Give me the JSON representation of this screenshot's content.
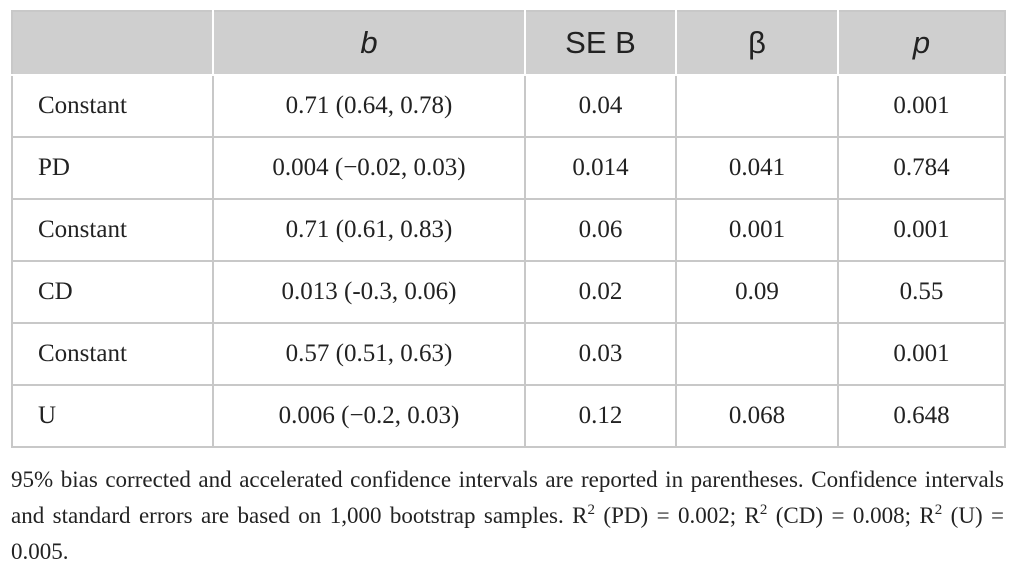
{
  "table": {
    "headers": [
      "",
      "b",
      "SE B",
      "β",
      "p"
    ],
    "rows": [
      [
        "Constant",
        "0.71 (0.64, 0.78)",
        "0.04",
        "",
        "0.001"
      ],
      [
        "PD",
        "0.004 (−0.02, 0.03)",
        "0.014",
        "0.041",
        "0.784"
      ],
      [
        "Constant",
        "0.71 (0.61, 0.83)",
        "0.06",
        "0.001",
        "0.001"
      ],
      [
        "CD",
        "0.013 (-0.3, 0.06)",
        "0.02",
        "0.09",
        "0.55"
      ],
      [
        "Constant",
        "0.57 (0.51, 0.63)",
        "0.03",
        "",
        "0.001"
      ],
      [
        "U",
        "0.006 (−0.2, 0.03)",
        "0.12",
        "0.068",
        "0.648"
      ]
    ]
  },
  "footnote": {
    "part1": "95% bias corrected and accelerated confidence intervals are reported in parentheses. Confidence intervals and standard errors are based on 1,000 bootstrap samples. R",
    "sup1": "2",
    "part2": " (PD) = 0.002; R",
    "sup2": "2",
    "part3": " (CD) = 0.008; R",
    "sup3": "2",
    "part4": " (U) = 0.005."
  }
}
